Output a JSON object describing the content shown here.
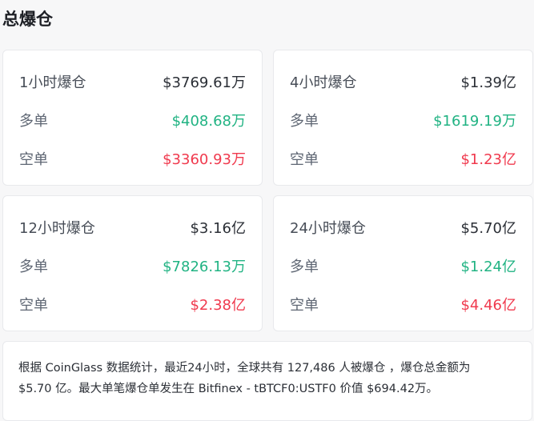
{
  "title": "总爆仓",
  "colors": {
    "long": "#21b383",
    "short": "#f03a4e"
  },
  "cards": [
    {
      "label": "1小时爆仓",
      "total": "$3769.61万",
      "long_label": "多单",
      "long": "$408.68万",
      "short_label": "空单",
      "short": "$3360.93万"
    },
    {
      "label": "4小时爆仓",
      "total": "$1.39亿",
      "long_label": "多单",
      "long": "$1619.19万",
      "short_label": "空单",
      "short": "$1.23亿"
    },
    {
      "label": "12小时爆仓",
      "total": "$3.16亿",
      "long_label": "多单",
      "long": "$7826.13万",
      "short_label": "空单",
      "short": "$2.38亿"
    },
    {
      "label": "24小时爆仓",
      "total": "$5.70亿",
      "long_label": "多单",
      "long": "$1.24亿",
      "short_label": "空单",
      "short": "$4.46亿"
    }
  ],
  "summary": {
    "line1": "根据 CoinGlass 数据统计，最近24小时，全球共有 127,486 人被爆仓 ，爆仓总金额为",
    "line2": "$5.70 亿。最大单笔爆仓单发生在 Bitfinex - tBTCF0:USTF0 价值 $694.42万。"
  }
}
